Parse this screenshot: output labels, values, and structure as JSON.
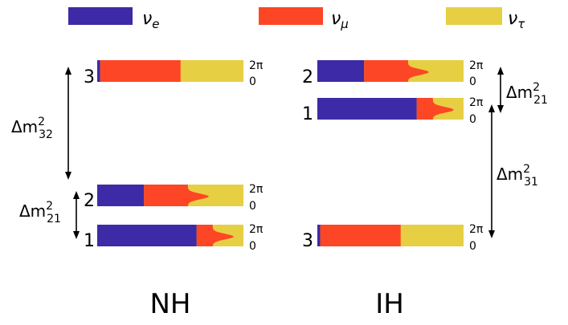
{
  "colors": {
    "nu_e": "#3d2aa6",
    "nu_mu": "#fd4625",
    "nu_tau": "#e6cf42"
  },
  "legend": [
    {
      "symbol": "ν",
      "sub": "e",
      "color": "#3d2aa6"
    },
    {
      "symbol": "ν",
      "sub": "μ",
      "color": "#fd4625"
    },
    {
      "symbol": "ν",
      "sub": "τ",
      "color": "#e6cf42"
    }
  ],
  "phase_labels": {
    "top": "2π",
    "bottom": "0"
  },
  "NH": {
    "label": "NH",
    "levels": [
      {
        "index": "3",
        "fractions": {
          "e": 0.02,
          "mu": 0.55,
          "tau": 0.43
        }
      },
      {
        "index": "2",
        "fractions": {
          "e": 0.32,
          "mu": 0.35,
          "tau": 0.33
        }
      },
      {
        "index": "1",
        "fractions": {
          "e": 0.68,
          "mu": 0.16,
          "tau": 0.16
        }
      }
    ],
    "gaps": [
      {
        "delta": "Δm",
        "sub": "32",
        "sup": "2"
      },
      {
        "delta": "Δm",
        "sub": "21",
        "sup": "2"
      }
    ]
  },
  "IH": {
    "label": "IH",
    "levels": [
      {
        "index": "2",
        "fractions": {
          "e": 0.32,
          "mu": 0.35,
          "tau": 0.33
        }
      },
      {
        "index": "1",
        "fractions": {
          "e": 0.68,
          "mu": 0.16,
          "tau": 0.16
        }
      },
      {
        "index": "3",
        "fractions": {
          "e": 0.02,
          "mu": 0.55,
          "tau": 0.43
        }
      }
    ],
    "gaps": [
      {
        "delta": "Δm",
        "sub": "21",
        "sup": "2"
      },
      {
        "delta": "Δm",
        "sub": "31",
        "sup": "2"
      }
    ]
  }
}
